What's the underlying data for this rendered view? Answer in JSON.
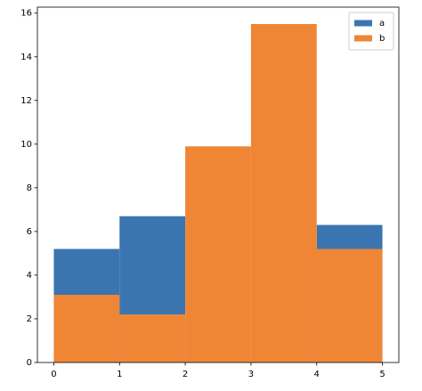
{
  "chart_data": {
    "type": "histogram",
    "bins": [
      0,
      1,
      2,
      3,
      4,
      5
    ],
    "series": [
      {
        "name": "a",
        "color": "#3a75b0",
        "values": [
          5.2,
          6.7,
          null,
          null,
          6.3
        ]
      },
      {
        "name": "b",
        "color": "#ef8636",
        "values": [
          3.1,
          2.2,
          9.9,
          15.5,
          5.2
        ]
      }
    ],
    "xlim": [
      -0.25,
      5.25
    ],
    "xticks": [
      0,
      1,
      2,
      3,
      4,
      5
    ],
    "ylim": [
      0,
      16.275
    ],
    "yticks": [
      0,
      2,
      4,
      6,
      8,
      10,
      12,
      14,
      16
    ],
    "grid": false,
    "legend": "upper right"
  }
}
